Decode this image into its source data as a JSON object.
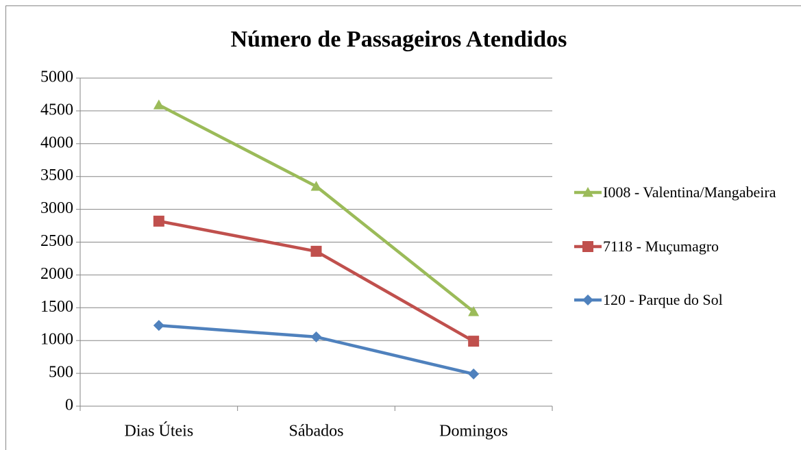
{
  "chart_data": {
    "type": "line",
    "title": "Número de Passageiros Atendidos",
    "categories": [
      "Dias Úteis",
      "Sábados",
      "Domingos"
    ],
    "series": [
      {
        "name": "I008 - Valentina/Mangabeira",
        "color": "#9bbb59",
        "marker": "triangle",
        "values": [
          4590,
          3350,
          1440
        ]
      },
      {
        "name": "7118 - Muçumagro",
        "color": "#c0504d",
        "marker": "square",
        "values": [
          2820,
          2360,
          990
        ]
      },
      {
        "name": "120 - Parque do Sol",
        "color": "#4f81bd",
        "marker": "diamond",
        "values": [
          1230,
          1055,
          490
        ]
      }
    ],
    "ylim": [
      0,
      5000
    ],
    "yticks": [
      0,
      500,
      1000,
      1500,
      2000,
      2500,
      3000,
      3500,
      4000,
      4500,
      5000
    ],
    "grid": true,
    "legend": "right"
  }
}
